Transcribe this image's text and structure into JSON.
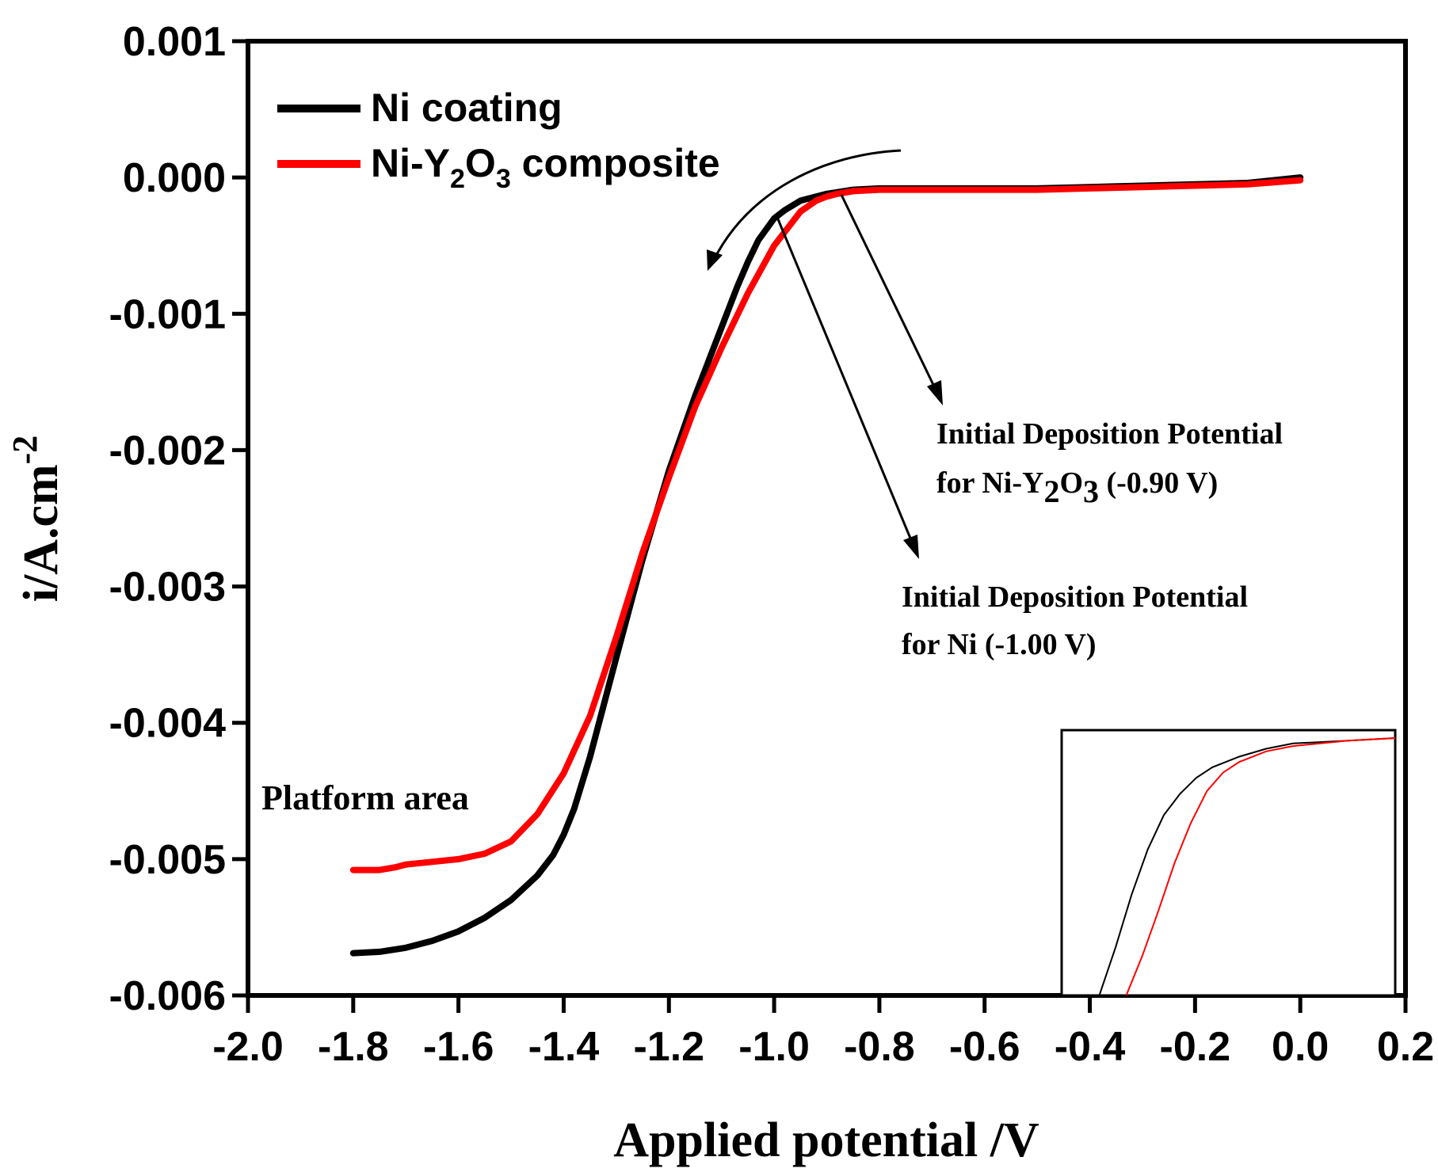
{
  "colors": {
    "ni": "#000000",
    "composite": "#ff0000",
    "axis": "#000000"
  },
  "chart_data": {
    "type": "line",
    "title": "",
    "xlabel": "Applied potential /V",
    "ylabel": "i/A.cm",
    "ylabel_sup": "-2",
    "xlim": [
      -2.0,
      0.2
    ],
    "ylim": [
      -0.006,
      0.001
    ],
    "x_ticks": [
      -2.0,
      -1.8,
      -1.6,
      -1.4,
      -1.2,
      -1.0,
      -0.8,
      -0.6,
      -0.4,
      -0.2,
      0.0,
      0.2
    ],
    "x_tick_labels": [
      "-2.0",
      "-1.8",
      "-1.6",
      "-1.4",
      "-1.2",
      "-1.0",
      "-0.8",
      "-0.6",
      "-0.4",
      "-0.2",
      "0.0",
      "0.2"
    ],
    "y_ticks": [
      0.001,
      0.0,
      -0.001,
      -0.002,
      -0.003,
      -0.004,
      -0.005,
      -0.006
    ],
    "y_tick_labels": [
      "0.001",
      "0.000",
      "-0.001",
      "-0.002",
      "-0.003",
      "-0.004",
      "-0.005",
      "-0.006"
    ],
    "legend": {
      "placement": "top-left",
      "ni_label": "Ni coating",
      "composite_label_a": "Ni-Y",
      "composite_label_sub1": "2",
      "composite_label_b": "O",
      "composite_label_sub2": "3",
      "composite_label_c": " composite"
    },
    "series": [
      {
        "name": "Ni coating",
        "x": [
          -1.8,
          -1.75,
          -1.7,
          -1.65,
          -1.6,
          -1.55,
          -1.5,
          -1.45,
          -1.42,
          -1.4,
          -1.38,
          -1.35,
          -1.3,
          -1.25,
          -1.2,
          -1.15,
          -1.1,
          -1.07,
          -1.05,
          -1.03,
          -1.0,
          -0.98,
          -0.95,
          -0.9,
          -0.85,
          -0.8,
          -0.7,
          -0.6,
          -0.5,
          -0.4,
          -0.3,
          -0.2,
          -0.1,
          0.0
        ],
        "y": [
          -0.00569,
          -0.00568,
          -0.00565,
          -0.0056,
          -0.00553,
          -0.00543,
          -0.0053,
          -0.00512,
          -0.00497,
          -0.00482,
          -0.00463,
          -0.00425,
          -0.00352,
          -0.0028,
          -0.00215,
          -0.0016,
          -0.0011,
          -0.0008,
          -0.00062,
          -0.00046,
          -0.0003,
          -0.00024,
          -0.00017,
          -0.00012,
          -9e-05,
          -8e-05,
          -8e-05,
          -8e-05,
          -8e-05,
          -7e-05,
          -6e-05,
          -5e-05,
          -4e-05,
          0.0
        ]
      },
      {
        "name": "Ni-Y2O3 composite",
        "x": [
          -1.8,
          -1.75,
          -1.72,
          -1.7,
          -1.65,
          -1.6,
          -1.55,
          -1.5,
          -1.45,
          -1.4,
          -1.35,
          -1.3,
          -1.25,
          -1.2,
          -1.15,
          -1.1,
          -1.05,
          -1.0,
          -0.97,
          -0.95,
          -0.92,
          -0.9,
          -0.88,
          -0.85,
          -0.8,
          -0.7,
          -0.6,
          -0.5,
          -0.4,
          -0.3,
          -0.2,
          -0.1,
          0.0
        ],
        "y": [
          -0.00508,
          -0.00508,
          -0.00506,
          -0.00504,
          -0.00502,
          -0.005,
          -0.00496,
          -0.00487,
          -0.00467,
          -0.00437,
          -0.00395,
          -0.00337,
          -0.00275,
          -0.0022,
          -0.00168,
          -0.00125,
          -0.00085,
          -0.0005,
          -0.00035,
          -0.00025,
          -0.00017,
          -0.00014,
          -0.00012,
          -0.0001,
          -9e-05,
          -9e-05,
          -9e-05,
          -9e-05,
          -8e-05,
          -7e-05,
          -6e-05,
          -5e-05,
          -2e-05
        ]
      }
    ],
    "annotations": {
      "platform": "Platform area",
      "composite_line1": "Initial Deposition Potential",
      "composite_line2_a": "for Ni-Y",
      "composite_line2_sub1": "2",
      "composite_line2_b": "O",
      "composite_line2_sub2": "3",
      "composite_line2_c": "  (-0.90 V)",
      "ni_line1": "Initial Deposition Potential",
      "ni_line2": "for Ni  (-1.00 V)"
    },
    "inset": {
      "placement": "bottom-right",
      "description_ni_x": [
        -0.36,
        -0.33,
        -0.3,
        -0.27,
        -0.24,
        -0.21,
        -0.18,
        -0.15,
        -0.1,
        -0.05,
        0.0,
        0.1,
        0.19
      ],
      "description_ni_y": [
        0.0,
        0.18,
        0.38,
        0.55,
        0.68,
        0.76,
        0.82,
        0.86,
        0.9,
        0.93,
        0.95,
        0.96,
        0.97
      ],
      "description_comp_x": [
        -0.31,
        -0.28,
        -0.25,
        -0.22,
        -0.19,
        -0.16,
        -0.13,
        -0.1,
        -0.05,
        0.0,
        0.1,
        0.19
      ],
      "description_comp_y": [
        0.0,
        0.15,
        0.32,
        0.5,
        0.65,
        0.77,
        0.84,
        0.88,
        0.92,
        0.94,
        0.96,
        0.97
      ]
    }
  }
}
